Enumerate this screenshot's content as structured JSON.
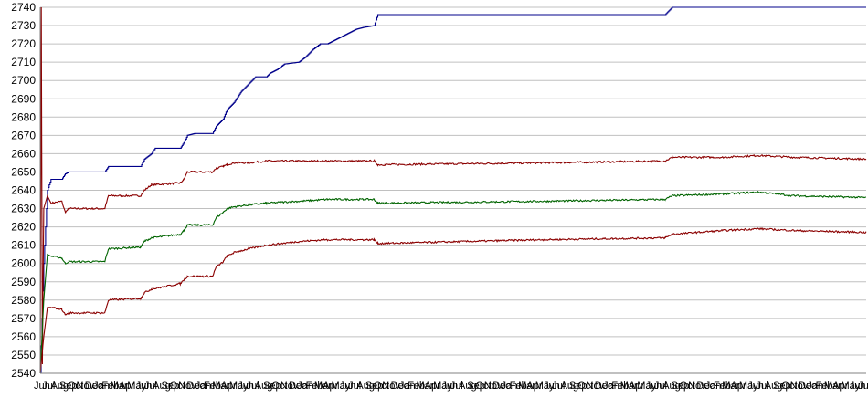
{
  "chart_data": {
    "type": "line",
    "title": "",
    "xlabel": "",
    "ylabel": "",
    "ylim": [
      2540,
      2740
    ],
    "ytick_step": 10,
    "grid": true,
    "legend": "none",
    "x_tick_labels": [
      "Jun",
      "Jul",
      "Aug",
      "Sep",
      "Oct",
      "Nov",
      "Dec",
      "Jan",
      "Feb",
      "Mar",
      "Apr",
      "May",
      "Jun",
      "Jul",
      "Aug",
      "Sep",
      "Oct",
      "Nov",
      "Dec",
      "Jan",
      "Feb",
      "Mar",
      "Apr",
      "May",
      "Jun",
      "Jul",
      "Aug",
      "Sep",
      "Oct",
      "Nov",
      "Dec",
      "Jan",
      "Feb",
      "Mar",
      "Apr",
      "May",
      "Jun",
      "Jul",
      "Aug",
      "Sep",
      "Oct",
      "Nov",
      "Dec",
      "Jan",
      "Feb",
      "Mar",
      "Apr",
      "May",
      "Jun",
      "Jul",
      "Aug",
      "Sep",
      "Oct",
      "Nov",
      "Dec",
      "Jan",
      "Feb",
      "Mar",
      "Apr",
      "May",
      "Jun",
      "Jul",
      "Aug",
      "Sep",
      "Oct",
      "Nov",
      "Dec",
      "Jan",
      "Feb",
      "Mar",
      "Apr",
      "May",
      "Jun",
      "Jul",
      "Aug",
      "Sep",
      "Oct",
      "Nov",
      "Dec",
      "Jan",
      "Feb",
      "Mar",
      "Apr",
      "May",
      "Jun",
      "Jul",
      "Aug",
      "Sep",
      "Oct",
      "Nov",
      "Dec",
      "Jan",
      "Feb",
      "Mar",
      "Apr",
      "May",
      "Jun",
      "Jul",
      "Aug",
      "Sep",
      "Oct",
      "Nov"
    ],
    "series": [
      {
        "color": "#00008b",
        "jitter": 0,
        "points": [
          [
            0,
            2540
          ],
          [
            1,
            2600
          ],
          [
            2,
            2640
          ],
          [
            3,
            2646
          ],
          [
            6,
            2646
          ],
          [
            7,
            2649
          ],
          [
            8,
            2650
          ],
          [
            18,
            2650
          ],
          [
            19,
            2653
          ],
          [
            28,
            2653
          ],
          [
            29,
            2657
          ],
          [
            31,
            2660
          ],
          [
            32,
            2663
          ],
          [
            39,
            2663
          ],
          [
            40,
            2666
          ],
          [
            41,
            2670
          ],
          [
            43,
            2671
          ],
          [
            48,
            2671
          ],
          [
            49,
            2675
          ],
          [
            51,
            2679
          ],
          [
            52,
            2684
          ],
          [
            54,
            2688
          ],
          [
            56,
            2694
          ],
          [
            58,
            2698
          ],
          [
            60,
            2702
          ],
          [
            63,
            2702
          ],
          [
            64,
            2704
          ],
          [
            66,
            2706
          ],
          [
            68,
            2709
          ],
          [
            72,
            2710
          ],
          [
            74,
            2713
          ],
          [
            76,
            2717
          ],
          [
            78,
            2720
          ],
          [
            80,
            2720
          ],
          [
            82,
            2722
          ],
          [
            84,
            2724
          ],
          [
            86,
            2726
          ],
          [
            88,
            2728
          ],
          [
            90,
            2729
          ],
          [
            93,
            2730
          ],
          [
            94,
            2736
          ],
          [
            96,
            2736
          ]
        ]
      },
      {
        "color": "#8b0000",
        "jitter": 0.6,
        "points": [
          [
            0,
            2540
          ],
          [
            0.3,
            2740
          ],
          [
            0.6,
            2545
          ],
          [
            1,
            2630
          ],
          [
            2,
            2637
          ],
          [
            3,
            2633
          ],
          [
            6,
            2634
          ],
          [
            7,
            2628
          ],
          [
            8,
            2630
          ],
          [
            18,
            2630
          ],
          [
            19,
            2637
          ],
          [
            28,
            2637
          ],
          [
            29,
            2640
          ],
          [
            31,
            2643
          ],
          [
            39,
            2644
          ],
          [
            40,
            2646
          ],
          [
            41,
            2650
          ],
          [
            48,
            2650
          ],
          [
            49,
            2652
          ],
          [
            51,
            2653
          ],
          [
            52,
            2654
          ],
          [
            54,
            2655
          ],
          [
            58,
            2655
          ],
          [
            63,
            2656
          ],
          [
            72,
            2656
          ],
          [
            80,
            2656
          ],
          [
            90,
            2656
          ],
          [
            93,
            2656
          ],
          [
            94,
            2654
          ],
          [
            96,
            2654
          ]
        ]
      },
      {
        "color": "#006400",
        "jitter": 0.6,
        "points": [
          [
            0,
            2540
          ],
          [
            1,
            2580
          ],
          [
            2,
            2605
          ],
          [
            3,
            2604
          ],
          [
            6,
            2603
          ],
          [
            7,
            2600
          ],
          [
            8,
            2601
          ],
          [
            18,
            2601
          ],
          [
            19,
            2608
          ],
          [
            28,
            2609
          ],
          [
            29,
            2612
          ],
          [
            31,
            2614
          ],
          [
            39,
            2616
          ],
          [
            40,
            2618
          ],
          [
            41,
            2621
          ],
          [
            48,
            2621
          ],
          [
            49,
            2625
          ],
          [
            51,
            2628
          ],
          [
            52,
            2630
          ],
          [
            54,
            2631
          ],
          [
            58,
            2632
          ],
          [
            63,
            2633
          ],
          [
            72,
            2634
          ],
          [
            80,
            2635
          ],
          [
            90,
            2635
          ],
          [
            93,
            2635
          ],
          [
            94,
            2633
          ],
          [
            96,
            2633
          ]
        ]
      },
      {
        "color": "#8b0000",
        "jitter": 0.6,
        "points": [
          [
            0,
            2540
          ],
          [
            1,
            2560
          ],
          [
            2,
            2576
          ],
          [
            3,
            2576
          ],
          [
            6,
            2575
          ],
          [
            7,
            2572
          ],
          [
            8,
            2573
          ],
          [
            18,
            2573
          ],
          [
            19,
            2580
          ],
          [
            28,
            2581
          ],
          [
            29,
            2584
          ],
          [
            31,
            2586
          ],
          [
            39,
            2589
          ],
          [
            40,
            2591
          ],
          [
            41,
            2593
          ],
          [
            48,
            2593
          ],
          [
            49,
            2598
          ],
          [
            51,
            2601
          ],
          [
            52,
            2604
          ],
          [
            54,
            2606
          ],
          [
            58,
            2608
          ],
          [
            63,
            2610
          ],
          [
            72,
            2612
          ],
          [
            80,
            2613
          ],
          [
            90,
            2613
          ],
          [
            93,
            2613
          ],
          [
            94,
            2611
          ],
          [
            96,
            2611
          ]
        ]
      }
    ],
    "series_tail": {
      "blue": [
        [
          96,
          2736
        ],
        [
          120,
          2736
        ],
        [
          150,
          2736
        ],
        [
          174,
          2736
        ],
        [
          176,
          2740
        ],
        [
          210,
          2740
        ],
        [
          230,
          2740
        ]
      ],
      "red_upper": [
        [
          96,
          2654
        ],
        [
          140,
          2655
        ],
        [
          174,
          2656
        ],
        [
          176,
          2658
        ],
        [
          190,
          2658
        ],
        [
          200,
          2659
        ],
        [
          210,
          2658
        ],
        [
          230,
          2657
        ]
      ],
      "green": [
        [
          96,
          2633
        ],
        [
          140,
          2634
        ],
        [
          174,
          2635
        ],
        [
          176,
          2637
        ],
        [
          190,
          2638
        ],
        [
          200,
          2639
        ],
        [
          210,
          2637
        ],
        [
          230,
          2636
        ]
      ],
      "red_lower": [
        [
          96,
          2611
        ],
        [
          140,
          2613
        ],
        [
          174,
          2614
        ],
        [
          176,
          2616
        ],
        [
          190,
          2618
        ],
        [
          200,
          2619
        ],
        [
          210,
          2618
        ],
        [
          230,
          2617
        ]
      ]
    }
  }
}
